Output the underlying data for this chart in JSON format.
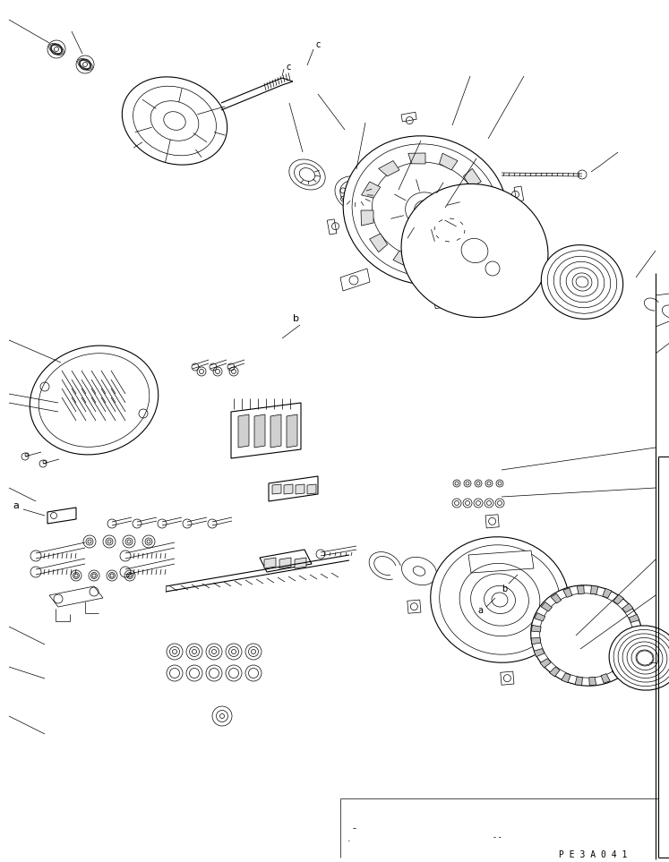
{
  "bg_color": "#ffffff",
  "line_color": "#000000",
  "fig_width": 7.47,
  "fig_height": 9.63,
  "dpi": 100,
  "watermark": "PE3A041",
  "label_a": "a",
  "label_b": "b",
  "label_c": "c"
}
